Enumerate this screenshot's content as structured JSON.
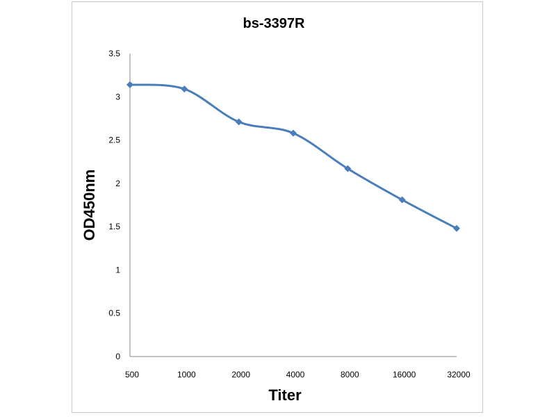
{
  "chart_data": {
    "type": "line",
    "title": "bs-3397R",
    "xlabel": "Titer",
    "ylabel": "OD450nm",
    "categories": [
      "500",
      "1000",
      "2000",
      "4000",
      "8000",
      "16000",
      "32000"
    ],
    "series": [
      {
        "values": [
          3.14,
          3.09,
          2.71,
          2.58,
          2.17,
          1.81,
          1.48
        ]
      }
    ],
    "yticks": [
      "0",
      "0.5",
      "1",
      "1.5",
      "2",
      "2.5",
      "3",
      "3.5"
    ],
    "ylim": [
      0,
      3.5
    ],
    "grid": false,
    "legend": "none",
    "line_color": "#4a7ebb",
    "marker": "diamond"
  }
}
